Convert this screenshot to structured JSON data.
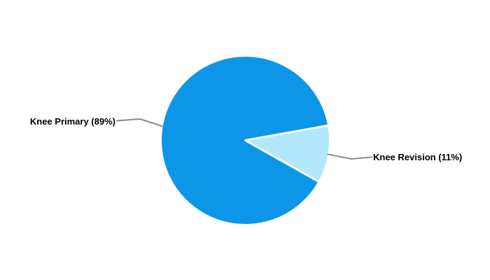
{
  "chart_data": {
    "type": "pie",
    "title": "",
    "categories": [
      "Knee Primary",
      "Knee Revision"
    ],
    "values": [
      89,
      11
    ],
    "value_unit": "percent",
    "slice_labels": [
      "Knee Primary (89%)",
      "Knee Revision (11%)"
    ],
    "slice_colors": [
      "#0D96E8",
      "#B3E7FC"
    ],
    "background_color": "#FFFFFF",
    "separator_color": "#FFFFFF",
    "leader_line_color": "#8B8B8B",
    "label_text_color": "#000000",
    "legend_position": "none",
    "label_style": "outside-callout"
  }
}
